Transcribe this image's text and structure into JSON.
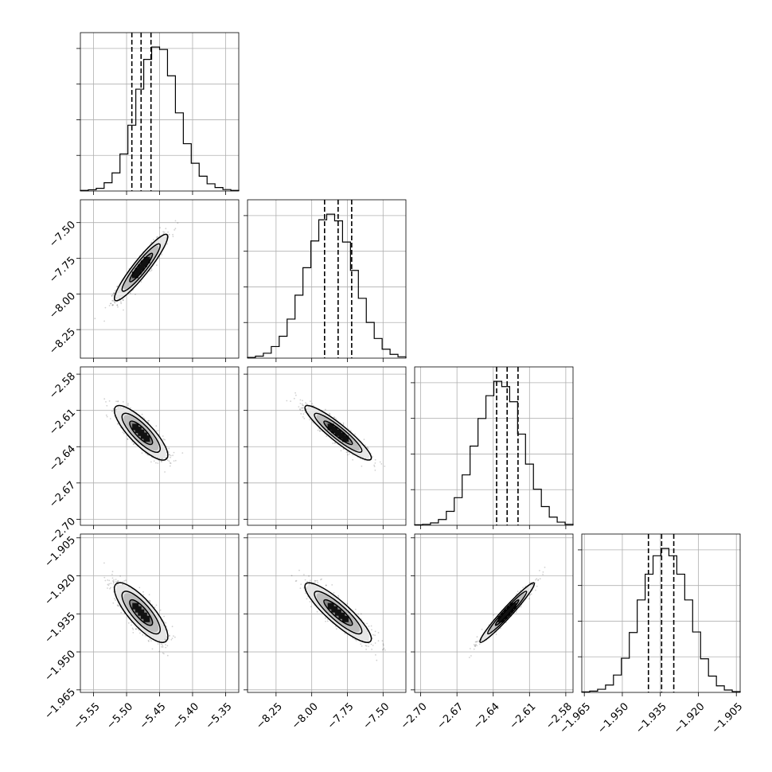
{
  "chart_data": {
    "type": "corner",
    "grid": true,
    "parameters": [
      {
        "index": 0,
        "range": [
          -5.57,
          -5.33
        ],
        "median": -5.478,
        "q16": -5.492,
        "q84": -5.463,
        "std": 0.0165,
        "ticks": [
          -5.55,
          -5.5,
          -5.45,
          -5.4,
          -5.35
        ],
        "tick_labels": [
          "−5.55",
          "−5.50",
          "−5.45",
          "−5.40",
          "−5.35"
        ],
        "hist_counts": [
          3,
          6,
          13,
          40,
          88,
          180,
          320,
          495,
          640,
          700,
          688,
          560,
          380,
          230,
          135,
          72,
          35,
          17,
          7,
          3
        ]
      },
      {
        "index": 1,
        "range": [
          -8.45,
          -7.34
        ],
        "median": -7.815,
        "q16": -7.91,
        "q84": -7.72,
        "std": 0.095,
        "ticks": [
          -8.25,
          -8.0,
          -7.75,
          -7.5
        ],
        "tick_labels": [
          "−8.25",
          "−8.00",
          "−7.75",
          "−7.50"
        ],
        "hist_counts": [
          3,
          9,
          22,
          52,
          98,
          175,
          282,
          405,
          525,
          620,
          645,
          615,
          520,
          393,
          268,
          160,
          88,
          40,
          17,
          6
        ]
      },
      {
        "index": 2,
        "range": [
          -2.705,
          -2.574
        ],
        "median": -2.6285,
        "q16": -2.6372,
        "q84": -2.6195,
        "std": 0.0092,
        "ticks": [
          -2.7,
          -2.67,
          -2.64,
          -2.61,
          -2.58
        ],
        "tick_labels": [
          "−2.70",
          "−2.67",
          "−2.64",
          "−2.61",
          "−2.58"
        ],
        "hist_counts": [
          2,
          4,
          10,
          24,
          58,
          115,
          210,
          330,
          445,
          540,
          600,
          578,
          515,
          380,
          255,
          150,
          78,
          34,
          13,
          4
        ]
      },
      {
        "index": 3,
        "range": [
          -1.966,
          -1.9035
        ],
        "median": -1.9345,
        "q16": -1.9397,
        "q84": -1.9297,
        "std": 0.0048,
        "ticks": [
          -1.965,
          -1.95,
          -1.935,
          -1.92,
          -1.905
        ],
        "tick_labels": [
          "−1.965",
          "−1.950",
          "−1.935",
          "−1.920",
          "−1.905"
        ],
        "hist_counts": [
          2,
          5,
          12,
          28,
          66,
          130,
          228,
          352,
          450,
          520,
          548,
          520,
          450,
          352,
          230,
          128,
          62,
          25,
          9,
          3
        ]
      }
    ],
    "correlations": [
      {
        "row": 1,
        "col": 0,
        "rho": 0.93
      },
      {
        "row": 2,
        "col": 0,
        "rho": -0.82
      },
      {
        "row": 2,
        "col": 1,
        "rho": -0.92
      },
      {
        "row": 3,
        "col": 0,
        "rho": -0.8
      },
      {
        "row": 3,
        "col": 1,
        "rho": -0.88
      },
      {
        "row": 3,
        "col": 2,
        "rho": 0.97
      }
    ]
  }
}
